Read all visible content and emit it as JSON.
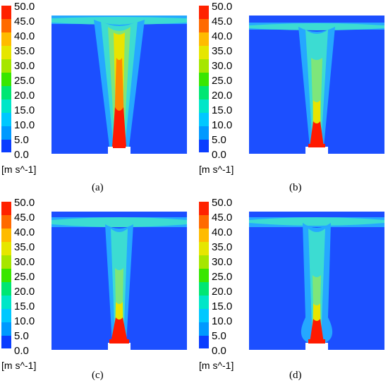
{
  "legend": {
    "ticks": [
      "50.0",
      "45.0",
      "40.0",
      "35.0",
      "30.0",
      "25.0",
      "20.0",
      "15.0",
      "10.0",
      "5.0",
      "0.0"
    ],
    "unit": "[m s^-1]",
    "colors": [
      "#0000ff",
      "#0b5dff",
      "#0099ff",
      "#00c8ff",
      "#00e6c8",
      "#00e673",
      "#39e600",
      "#a6e600",
      "#e6e600",
      "#ffbb00",
      "#ff6a00",
      "#ff0000"
    ]
  },
  "panels": [
    {
      "caption": "(a)"
    },
    {
      "caption": "(b)"
    },
    {
      "caption": "(c)"
    },
    {
      "caption": "(d)"
    }
  ],
  "colors": {
    "background": "#1c4fff",
    "low": "#25a8ff",
    "mid": "#3cdcd2",
    "high": "#e8e400",
    "core": "#ff1a00",
    "nozzle": "#ffffff"
  }
}
